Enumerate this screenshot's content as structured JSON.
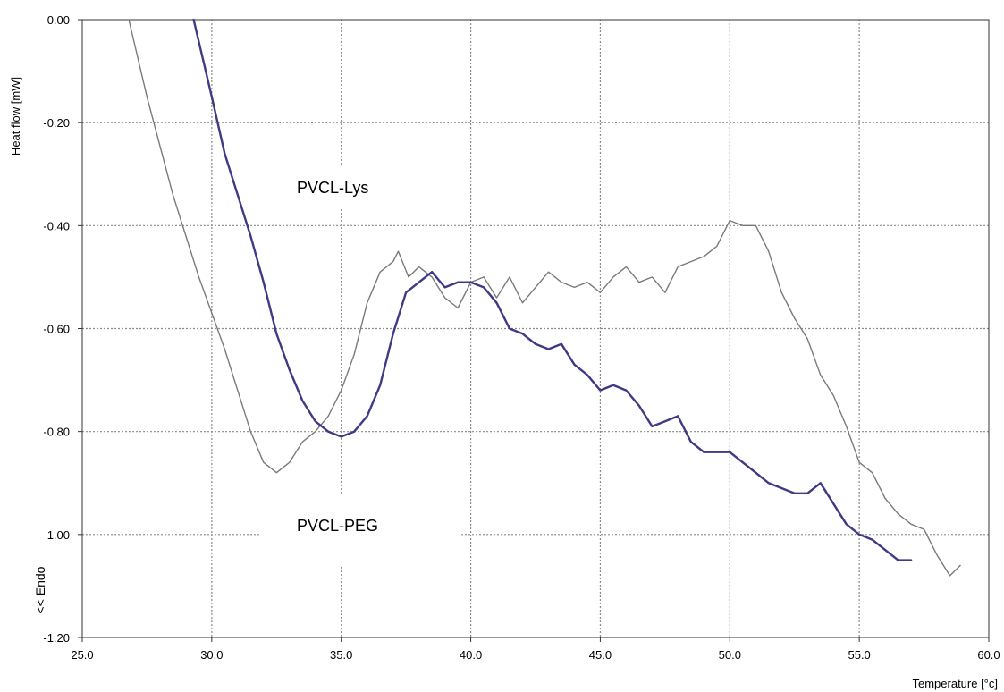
{
  "chart_data": {
    "type": "line",
    "xlabel": "Temperature [°c]",
    "ylabel": "Heat flow [mW]",
    "ylabel_secondary": "<< Endo",
    "xlim": [
      25.0,
      60.0
    ],
    "ylim": [
      -1.2,
      0.0
    ],
    "x_ticks": [
      "25.0",
      "30.0",
      "35.0",
      "40.0",
      "45.0",
      "50.0",
      "55.0",
      "60.0"
    ],
    "y_ticks": [
      "0.00",
      "-0.20",
      "-0.40",
      "-0.60",
      "-0.80",
      "-1.00",
      "-1.20"
    ],
    "grid": true,
    "annotations": [
      "PVCL-Lys",
      "PVCL-PEG"
    ],
    "series": [
      {
        "color": "#7a7a7a",
        "points": [
          [
            26.8,
            0.0
          ],
          [
            27.5,
            -0.15
          ],
          [
            28.5,
            -0.34
          ],
          [
            29.5,
            -0.5
          ],
          [
            30.0,
            -0.57
          ],
          [
            30.5,
            -0.64
          ],
          [
            31.0,
            -0.72
          ],
          [
            31.5,
            -0.8
          ],
          [
            32.0,
            -0.86
          ],
          [
            32.5,
            -0.88
          ],
          [
            33.0,
            -0.86
          ],
          [
            33.5,
            -0.82
          ],
          [
            34.0,
            -0.8
          ],
          [
            34.5,
            -0.77
          ],
          [
            35.0,
            -0.72
          ],
          [
            35.5,
            -0.65
          ],
          [
            36.0,
            -0.55
          ],
          [
            36.5,
            -0.49
          ],
          [
            37.0,
            -0.47
          ],
          [
            37.2,
            -0.45
          ],
          [
            37.6,
            -0.5
          ],
          [
            38.0,
            -0.48
          ],
          [
            38.5,
            -0.5
          ],
          [
            39.0,
            -0.54
          ],
          [
            39.5,
            -0.56
          ],
          [
            40.0,
            -0.51
          ],
          [
            40.5,
            -0.5
          ],
          [
            41.0,
            -0.54
          ],
          [
            41.5,
            -0.5
          ],
          [
            42.0,
            -0.55
          ],
          [
            42.5,
            -0.52
          ],
          [
            43.0,
            -0.49
          ],
          [
            43.5,
            -0.51
          ],
          [
            44.0,
            -0.52
          ],
          [
            44.5,
            -0.51
          ],
          [
            45.0,
            -0.53
          ],
          [
            45.5,
            -0.5
          ],
          [
            46.0,
            -0.48
          ],
          [
            46.5,
            -0.51
          ],
          [
            47.0,
            -0.5
          ],
          [
            47.5,
            -0.53
          ],
          [
            48.0,
            -0.48
          ],
          [
            48.5,
            -0.47
          ],
          [
            49.0,
            -0.46
          ],
          [
            49.5,
            -0.44
          ],
          [
            50.0,
            -0.39
          ],
          [
            50.5,
            -0.4
          ],
          [
            51.0,
            -0.4
          ],
          [
            51.5,
            -0.45
          ],
          [
            52.0,
            -0.53
          ],
          [
            52.5,
            -0.58
          ],
          [
            53.0,
            -0.62
          ],
          [
            53.5,
            -0.69
          ],
          [
            54.0,
            -0.73
          ],
          [
            54.5,
            -0.79
          ],
          [
            55.0,
            -0.86
          ],
          [
            55.5,
            -0.88
          ],
          [
            56.0,
            -0.93
          ],
          [
            56.5,
            -0.96
          ],
          [
            57.0,
            -0.98
          ],
          [
            57.5,
            -0.99
          ],
          [
            58.0,
            -1.04
          ],
          [
            58.5,
            -1.08
          ],
          [
            58.9,
            -1.06
          ]
        ]
      },
      {
        "color": "#3f3a84",
        "points": [
          [
            29.3,
            0.0
          ],
          [
            30.0,
            -0.15
          ],
          [
            30.5,
            -0.26
          ],
          [
            31.0,
            -0.34
          ],
          [
            31.5,
            -0.42
          ],
          [
            32.0,
            -0.51
          ],
          [
            32.5,
            -0.61
          ],
          [
            33.0,
            -0.68
          ],
          [
            33.5,
            -0.74
          ],
          [
            34.0,
            -0.78
          ],
          [
            34.5,
            -0.8
          ],
          [
            35.0,
            -0.81
          ],
          [
            35.5,
            -0.8
          ],
          [
            36.0,
            -0.77
          ],
          [
            36.5,
            -0.71
          ],
          [
            37.0,
            -0.61
          ],
          [
            37.5,
            -0.53
          ],
          [
            38.0,
            -0.51
          ],
          [
            38.5,
            -0.49
          ],
          [
            39.0,
            -0.52
          ],
          [
            39.5,
            -0.51
          ],
          [
            40.0,
            -0.51
          ],
          [
            40.5,
            -0.52
          ],
          [
            41.0,
            -0.55
          ],
          [
            41.5,
            -0.6
          ],
          [
            42.0,
            -0.61
          ],
          [
            42.5,
            -0.63
          ],
          [
            43.0,
            -0.64
          ],
          [
            43.5,
            -0.63
          ],
          [
            44.0,
            -0.67
          ],
          [
            44.5,
            -0.69
          ],
          [
            45.0,
            -0.72
          ],
          [
            45.5,
            -0.71
          ],
          [
            46.0,
            -0.72
          ],
          [
            46.5,
            -0.75
          ],
          [
            47.0,
            -0.79
          ],
          [
            47.5,
            -0.78
          ],
          [
            48.0,
            -0.77
          ],
          [
            48.5,
            -0.82
          ],
          [
            49.0,
            -0.84
          ],
          [
            49.5,
            -0.84
          ],
          [
            50.0,
            -0.84
          ],
          [
            50.5,
            -0.86
          ],
          [
            51.0,
            -0.88
          ],
          [
            51.5,
            -0.9
          ],
          [
            52.0,
            -0.91
          ],
          [
            52.5,
            -0.92
          ],
          [
            53.0,
            -0.92
          ],
          [
            53.5,
            -0.9
          ],
          [
            54.0,
            -0.94
          ],
          [
            54.5,
            -0.98
          ],
          [
            55.0,
            -1.0
          ],
          [
            55.5,
            -1.01
          ],
          [
            56.0,
            -1.03
          ],
          [
            56.5,
            -1.05
          ],
          [
            57.0,
            -1.05
          ]
        ]
      }
    ]
  }
}
